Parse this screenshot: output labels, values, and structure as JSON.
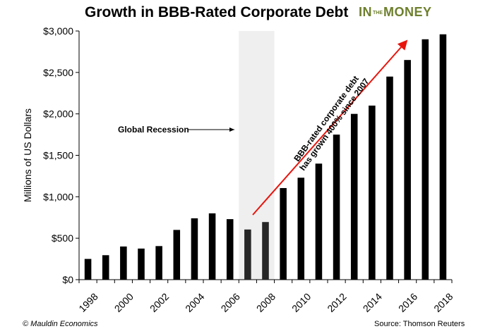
{
  "title": "Growth in BBB-Rated Corporate Debt",
  "logo": {
    "part1": "IN",
    "part2": "THE",
    "part3": "MONEY"
  },
  "footer": {
    "left": "© Mauldin Economics",
    "right": "Source: Thomson Reuters"
  },
  "colors": {
    "bar": "#000000",
    "recession_bar": "#262626",
    "recession_band": "#efefef",
    "arrow": "#e8150d",
    "logo": "#6d7f2d"
  },
  "chart_data": {
    "type": "bar",
    "ylabel": "Millions of US Dollars",
    "ylim": [
      0,
      3000
    ],
    "y_ticks": [
      0,
      500,
      1000,
      1500,
      2000,
      2500,
      3000
    ],
    "y_tick_labels": [
      "$0",
      "$500",
      "$1,000",
      "$1,500",
      "$2,000",
      "$2,500",
      "$3,000"
    ],
    "categories": [
      "1998",
      "1999",
      "2000",
      "2001",
      "2002",
      "2003",
      "2004",
      "2005",
      "2006",
      "2007",
      "2008",
      "2009",
      "2010",
      "2011",
      "2012",
      "2013",
      "2014",
      "2015",
      "2016",
      "2017",
      "2018"
    ],
    "x_tick_labels": [
      "1998",
      "",
      "2000",
      "",
      "2002",
      "",
      "2004",
      "",
      "2006",
      "",
      "2008",
      "",
      "2010",
      "",
      "2012",
      "",
      "2014",
      "",
      "2016",
      "",
      "2018"
    ],
    "values": [
      250,
      295,
      400,
      375,
      405,
      600,
      740,
      800,
      730,
      605,
      695,
      1105,
      1230,
      1400,
      1750,
      2000,
      2100,
      2450,
      2650,
      2900,
      2960
    ],
    "recession": {
      "start": "2007",
      "end": "2008"
    },
    "annotations": [
      {
        "text": "Global Recession",
        "type": "arrow-right"
      },
      {
        "text_line1": "BBB-rated corporate debt",
        "text_line2": "has grown 400% since 2007",
        "type": "trend-arrow"
      }
    ]
  }
}
